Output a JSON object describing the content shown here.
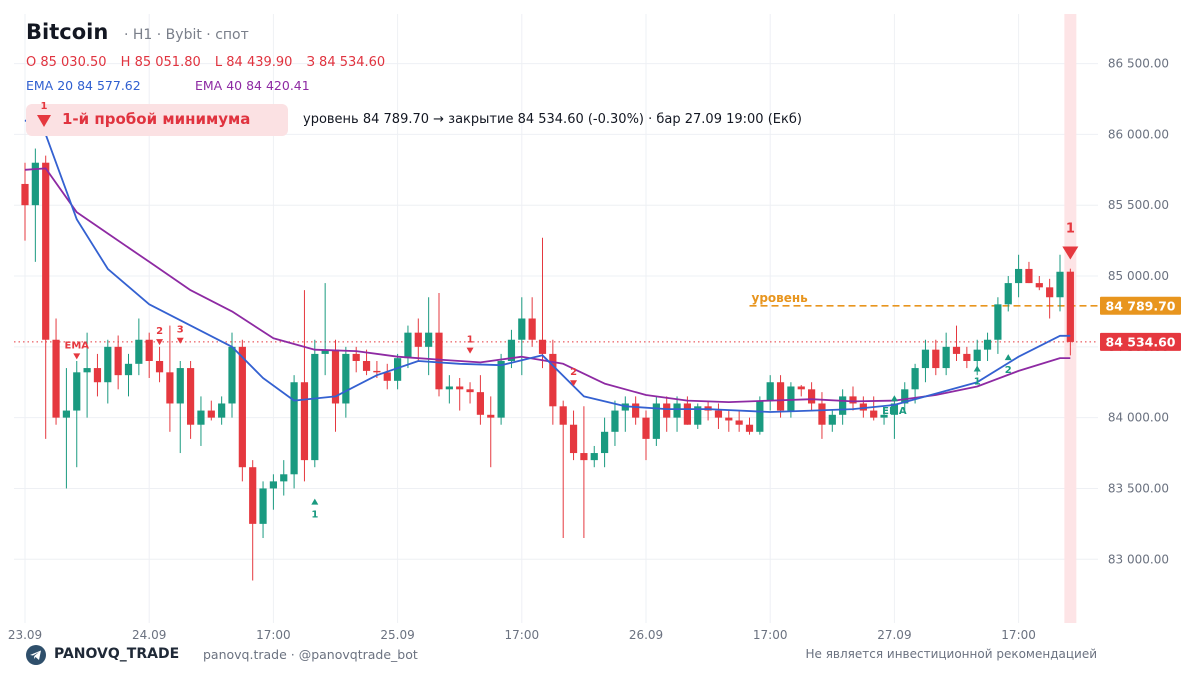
{
  "header": {
    "title": "Bitcoin",
    "subtitle": "· H1 · Bybit · спот",
    "ohlc": {
      "open": "O 85 030.50",
      "high": "H 85 051.80",
      "low": "L 84 439.90",
      "close": "З 84 534.60"
    },
    "ema20": "EMA 20  84 577.62",
    "ema40": "EMA 40  84 420.41"
  },
  "signal": {
    "badge": "1-й пробой минимума",
    "event": "уровень 84 789.70 → закрытие 84 534.60 (-0.30%) · бар 27.09 19:00 (Екб)"
  },
  "footer": {
    "brand": "PANOVQ_TRADE",
    "links": "panovq.trade · @panovqtrade_bot",
    "disclaimer": "Не является инвестиционной рекомендацией"
  },
  "colors": {
    "up": "#1a9a80",
    "down": "#e5383f",
    "ema20": "#3461d1",
    "ema40": "#8e2aa3",
    "level": "#e8951e",
    "close_line": "#e5383f"
  },
  "chart_data": {
    "type": "candlestick",
    "timeframe": "H1",
    "ylim": [
      82550,
      86850
    ],
    "y_ticks": [
      83000,
      83500,
      84000,
      84500,
      85000,
      85500,
      86000,
      86500
    ],
    "y_tick_labels": [
      "83 000.00",
      "83 500.00",
      "84 000.00",
      "84 500.00",
      "85 000.00",
      "85 500.00",
      "86 000.00",
      "86 500.00"
    ],
    "x_ticks": [
      {
        "label": "23.09",
        "index": 0
      },
      {
        "label": "24.09",
        "index": 12
      },
      {
        "label": "17:00",
        "index": 24
      },
      {
        "label": "25.09",
        "index": 36
      },
      {
        "label": "17:00",
        "index": 48
      },
      {
        "label": "26.09",
        "index": 60
      },
      {
        "label": "17:00",
        "index": 72
      },
      {
        "label": "27.09",
        "index": 84
      },
      {
        "label": "17:00",
        "index": 96
      }
    ],
    "candles": [
      [
        85650,
        85800,
        85250,
        85500
      ],
      [
        85500,
        85900,
        85100,
        85800
      ],
      [
        85800,
        85850,
        83850,
        84550
      ],
      [
        84550,
        84700,
        83950,
        84000
      ],
      [
        84000,
        84350,
        83500,
        84050
      ],
      [
        84050,
        84400,
        83650,
        84320
      ],
      [
        84320,
        84600,
        84000,
        84350
      ],
      [
        84350,
        84450,
        84150,
        84250
      ],
      [
        84250,
        84550,
        84100,
        84500
      ],
      [
        84500,
        84580,
        84200,
        84300
      ],
      [
        84300,
        84450,
        84150,
        84380
      ],
      [
        84380,
        84700,
        84300,
        84550
      ],
      [
        84550,
        84600,
        84280,
        84400
      ],
      [
        84400,
        84500,
        84250,
        84320
      ],
      [
        84320,
        84650,
        83900,
        84100
      ],
      [
        84100,
        84400,
        83750,
        84350
      ],
      [
        84350,
        84400,
        83850,
        83950
      ],
      [
        83950,
        84150,
        83800,
        84050
      ],
      [
        84050,
        84120,
        83980,
        84000
      ],
      [
        84000,
        84150,
        83950,
        84100
      ],
      [
        84100,
        84600,
        84000,
        84500
      ],
      [
        84500,
        84550,
        83550,
        83650
      ],
      [
        83650,
        83700,
        82850,
        83250
      ],
      [
        83250,
        83550,
        83150,
        83500
      ],
      [
        83500,
        83600,
        83350,
        83550
      ],
      [
        83550,
        83700,
        83450,
        83600
      ],
      [
        83600,
        84300,
        83500,
        84250
      ],
      [
        84250,
        84900,
        83550,
        83700
      ],
      [
        83700,
        84550,
        83650,
        84450
      ],
      [
        84450,
        84950,
        84300,
        84480
      ],
      [
        84480,
        84550,
        83900,
        84100
      ],
      [
        84100,
        84500,
        84000,
        84450
      ],
      [
        84450,
        84500,
        84320,
        84400
      ],
      [
        84400,
        84480,
        84300,
        84330
      ],
      [
        84330,
        84400,
        84280,
        84320
      ],
      [
        84320,
        84380,
        84200,
        84260
      ],
      [
        84260,
        84450,
        84200,
        84420
      ],
      [
        84420,
        84650,
        84350,
        84600
      ],
      [
        84600,
        84700,
        84400,
        84500
      ],
      [
        84500,
        84850,
        84300,
        84600
      ],
      [
        84600,
        84880,
        84150,
        84200
      ],
      [
        84200,
        84300,
        84100,
        84220
      ],
      [
        84220,
        84280,
        84050,
        84200
      ],
      [
        84200,
        84250,
        84100,
        84180
      ],
      [
        84180,
        84300,
        83950,
        84020
      ],
      [
        84020,
        84150,
        83650,
        84000
      ],
      [
        84000,
        84450,
        83950,
        84400
      ],
      [
        84400,
        84620,
        84350,
        84550
      ],
      [
        84550,
        84850,
        84300,
        84700
      ],
      [
        84700,
        84850,
        84500,
        84550
      ],
      [
        84550,
        85270,
        84350,
        84450
      ],
      [
        84450,
        84550,
        83950,
        84080
      ],
      [
        84080,
        84120,
        83150,
        83950
      ],
      [
        83950,
        84050,
        83700,
        83750
      ],
      [
        83750,
        84080,
        83150,
        83700
      ],
      [
        83700,
        83800,
        83650,
        83750
      ],
      [
        83750,
        84000,
        83650,
        83900
      ],
      [
        83900,
        84120,
        83800,
        84050
      ],
      [
        84050,
        84150,
        83900,
        84100
      ],
      [
        84100,
        84150,
        83950,
        84000
      ],
      [
        84000,
        84050,
        83700,
        83850
      ],
      [
        83850,
        84150,
        83800,
        84100
      ],
      [
        84100,
        84150,
        83900,
        84000
      ],
      [
        84000,
        84150,
        83900,
        84100
      ],
      [
        84100,
        84150,
        83950,
        83950
      ],
      [
        83950,
        84100,
        83920,
        84080
      ],
      [
        84080,
        84120,
        83980,
        84050
      ],
      [
        84050,
        84100,
        83920,
        84000
      ],
      [
        84000,
        84050,
        83900,
        83980
      ],
      [
        83980,
        84050,
        83900,
        83950
      ],
      [
        83950,
        84000,
        83880,
        83900
      ],
      [
        83900,
        84150,
        83880,
        84120
      ],
      [
        84120,
        84300,
        84050,
        84250
      ],
      [
        84250,
        84300,
        84000,
        84050
      ],
      [
        84050,
        84250,
        84000,
        84220
      ],
      [
        84220,
        84230,
        84150,
        84200
      ],
      [
        84200,
        84250,
        84050,
        84100
      ],
      [
        84100,
        84180,
        83850,
        83950
      ],
      [
        83950,
        84050,
        83900,
        84020
      ],
      [
        84020,
        84200,
        83950,
        84150
      ],
      [
        84150,
        84220,
        84050,
        84100
      ],
      [
        84100,
        84150,
        84000,
        84050
      ],
      [
        84050,
        84150,
        83980,
        84000
      ],
      [
        84000,
        84050,
        83950,
        84020
      ],
      [
        84020,
        84150,
        83850,
        84100
      ],
      [
        84100,
        84250,
        84050,
        84200
      ],
      [
        84200,
        84380,
        84100,
        84350
      ],
      [
        84350,
        84550,
        84250,
        84480
      ],
      [
        84480,
        84550,
        84300,
        84350
      ],
      [
        84350,
        84600,
        84300,
        84500
      ],
      [
        84500,
        84650,
        84400,
        84450
      ],
      [
        84450,
        84500,
        84350,
        84400
      ],
      [
        84400,
        84550,
        84300,
        84480
      ],
      [
        84480,
        84600,
        84400,
        84550
      ],
      [
        84550,
        84850,
        84450,
        84800
      ],
      [
        84800,
        85000,
        84750,
        84950
      ],
      [
        84950,
        85150,
        84850,
        85050
      ],
      [
        85050,
        85100,
        84950,
        84950
      ],
      [
        84950,
        85000,
        84900,
        84920
      ],
      [
        84920,
        84980,
        84700,
        84850
      ],
      [
        84850,
        85150,
        84750,
        85030
      ],
      [
        85030.5,
        85051.8,
        84439.9,
        84534.6
      ]
    ],
    "ema20": [
      [
        0,
        86100
      ],
      [
        2,
        86000
      ],
      [
        5,
        85400
      ],
      [
        8,
        85050
      ],
      [
        12,
        84800
      ],
      [
        16,
        84650
      ],
      [
        20,
        84500
      ],
      [
        23,
        84280
      ],
      [
        26,
        84120
      ],
      [
        30,
        84150
      ],
      [
        34,
        84300
      ],
      [
        38,
        84400
      ],
      [
        42,
        84380
      ],
      [
        46,
        84370
      ],
      [
        50,
        84440
      ],
      [
        54,
        84150
      ],
      [
        58,
        84080
      ],
      [
        62,
        84060
      ],
      [
        66,
        84060
      ],
      [
        72,
        84040
      ],
      [
        76,
        84050
      ],
      [
        80,
        84060
      ],
      [
        84,
        84090
      ],
      [
        88,
        84170
      ],
      [
        92,
        84250
      ],
      [
        96,
        84430
      ],
      [
        100,
        84577.62
      ],
      [
        101,
        84577.62
      ]
    ],
    "ema40": [
      [
        0,
        85750
      ],
      [
        2,
        85760
      ],
      [
        5,
        85450
      ],
      [
        8,
        85300
      ],
      [
        12,
        85100
      ],
      [
        16,
        84900
      ],
      [
        20,
        84750
      ],
      [
        24,
        84560
      ],
      [
        28,
        84480
      ],
      [
        32,
        84470
      ],
      [
        36,
        84430
      ],
      [
        40,
        84410
      ],
      [
        44,
        84390
      ],
      [
        48,
        84430
      ],
      [
        52,
        84380
      ],
      [
        56,
        84240
      ],
      [
        60,
        84160
      ],
      [
        64,
        84120
      ],
      [
        68,
        84110
      ],
      [
        72,
        84120
      ],
      [
        76,
        84130
      ],
      [
        80,
        84115
      ],
      [
        84,
        84120
      ],
      [
        88,
        84160
      ],
      [
        92,
        84220
      ],
      [
        96,
        84330
      ],
      [
        100,
        84420.41
      ],
      [
        101,
        84420.41
      ]
    ],
    "level": {
      "value": 84789.7,
      "label": "уровень",
      "start_index": 70,
      "tag": "84 789.70"
    },
    "last_close": {
      "value": 84534.6,
      "tag": "84 534.60"
    },
    "markers": [
      {
        "index": 1,
        "type": "down",
        "price": 86050,
        "text": "1"
      },
      {
        "index": 5,
        "type": "down",
        "price": 84440,
        "text": "EMA"
      },
      {
        "index": 13,
        "type": "down",
        "price": 84540,
        "text": "2"
      },
      {
        "index": 15,
        "type": "down",
        "price": 84550,
        "text": "3"
      },
      {
        "index": 28,
        "type": "up",
        "price": 83400,
        "text": "1"
      },
      {
        "index": 43,
        "type": "down",
        "price": 84480,
        "text": "1"
      },
      {
        "index": 53,
        "type": "down",
        "price": 84250,
        "text": "2"
      },
      {
        "index": 84,
        "type": "up",
        "price": 84130,
        "text": "EMA"
      },
      {
        "index": 92,
        "type": "up",
        "price": 84340,
        "text": "1"
      },
      {
        "index": 95,
        "type": "up",
        "price": 84420,
        "text": "2"
      },
      {
        "index": 101,
        "type": "down-big",
        "price": 85180,
        "text": "1"
      }
    ],
    "highlight_index": 101,
    "grid": true
  }
}
